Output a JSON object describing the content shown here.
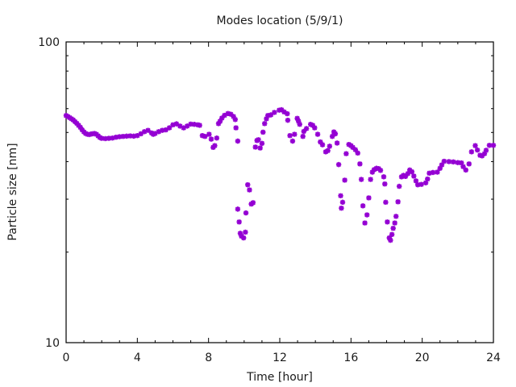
{
  "chart_data": {
    "type": "scatter",
    "title": "Modes location (5/9/1)",
    "xlabel": "Time [hour]",
    "ylabel": "Particle size [nm]",
    "xlim": [
      0,
      24
    ],
    "ylim": [
      10,
      100
    ],
    "yscale": "log",
    "xticks": [
      "0",
      "4",
      "8",
      "12",
      "16",
      "20",
      "24"
    ],
    "yticks": [
      "10",
      "100"
    ],
    "grid": false,
    "legend": "none",
    "series": [
      {
        "name": "modes",
        "color": "#9400d3",
        "marker": "asterisk",
        "points": [
          [
            0,
            56.9
          ],
          [
            0.1,
            56.5
          ],
          [
            0.2,
            56
          ],
          [
            0.3,
            55.5
          ],
          [
            0.4,
            55
          ],
          [
            0.5,
            54.3
          ],
          [
            0.6,
            53.6
          ],
          [
            0.7,
            52.8
          ],
          [
            0.8,
            52
          ],
          [
            0.9,
            51
          ],
          [
            1.0,
            50.2
          ],
          [
            1.1,
            49.6
          ],
          [
            1.2,
            49.3
          ],
          [
            1.3,
            49.2
          ],
          [
            1.4,
            49.4
          ],
          [
            1.5,
            49.5
          ],
          [
            1.6,
            49.6
          ],
          [
            1.7,
            49.3
          ],
          [
            1.8,
            48.7
          ],
          [
            1.9,
            48.1
          ],
          [
            2.0,
            47.8
          ],
          [
            2.2,
            47.7
          ],
          [
            2.4,
            47.8
          ],
          [
            2.6,
            47.9
          ],
          [
            2.8,
            48.2
          ],
          [
            3.0,
            48.4
          ],
          [
            3.2,
            48.5
          ],
          [
            3.4,
            48.6
          ],
          [
            3.6,
            48.7
          ],
          [
            3.8,
            48.6
          ],
          [
            4.0,
            48.8
          ],
          [
            4.2,
            49.5
          ],
          [
            4.4,
            50.3
          ],
          [
            4.6,
            50.8
          ],
          [
            4.8,
            49.8
          ],
          [
            4.9,
            49.3
          ],
          [
            5.0,
            49.6
          ],
          [
            5.2,
            50.3
          ],
          [
            5.4,
            50.8
          ],
          [
            5.6,
            51
          ],
          [
            5.8,
            51.8
          ],
          [
            6.0,
            53
          ],
          [
            6.2,
            53.4
          ],
          [
            6.4,
            52.5
          ],
          [
            6.6,
            51.8
          ],
          [
            6.8,
            52.5
          ],
          [
            7.0,
            53.3
          ],
          [
            7.2,
            53.2
          ],
          [
            7.4,
            53
          ],
          [
            7.5,
            52.8
          ],
          [
            7.65,
            48.8
          ],
          [
            7.8,
            48.5
          ],
          [
            8.03,
            49.3
          ],
          [
            8.15,
            47.5
          ],
          [
            8.26,
            44.6
          ],
          [
            8.35,
            45.2
          ],
          [
            8.46,
            47.9
          ],
          [
            8.56,
            53.5
          ],
          [
            8.65,
            54.5
          ],
          [
            8.75,
            55.8
          ],
          [
            8.9,
            57
          ],
          [
            9.09,
            57.8
          ],
          [
            9.25,
            57.5
          ],
          [
            9.4,
            56.5
          ],
          [
            9.5,
            55.2
          ],
          [
            9.54,
            51.8
          ],
          [
            9.64,
            46.8
          ],
          [
            9.64,
            27.8
          ],
          [
            9.72,
            25.2
          ],
          [
            9.78,
            23.1
          ],
          [
            9.85,
            22.6
          ],
          [
            9.97,
            22.3
          ],
          [
            10.07,
            23.3
          ],
          [
            10.1,
            27.0
          ],
          [
            10.2,
            33.5
          ],
          [
            10.3,
            32.2
          ],
          [
            10.4,
            28.9
          ],
          [
            10.5,
            29.2
          ],
          [
            10.63,
            44.7
          ],
          [
            10.72,
            47.0
          ],
          [
            10.8,
            47.3
          ],
          [
            10.9,
            44.4
          ],
          [
            11.0,
            46.0
          ],
          [
            11.06,
            50.1
          ],
          [
            11.15,
            53.5
          ],
          [
            11.25,
            55.5
          ],
          [
            11.33,
            56.9
          ],
          [
            11.5,
            57.2
          ],
          [
            11.7,
            58.3
          ],
          [
            11.97,
            59.3
          ],
          [
            12.1,
            59.5
          ],
          [
            12.25,
            58.5
          ],
          [
            12.42,
            57.7
          ],
          [
            12.45,
            54.9
          ],
          [
            12.57,
            48.8
          ],
          [
            12.72,
            46.8
          ],
          [
            12.83,
            49.3
          ],
          [
            12.98,
            55.7
          ],
          [
            13.05,
            54.5
          ],
          [
            13.12,
            53.2
          ],
          [
            13.3,
            48.5
          ],
          [
            13.35,
            50.4
          ],
          [
            13.5,
            51.5
          ],
          [
            13.73,
            53.2
          ],
          [
            13.85,
            52.8
          ],
          [
            13.96,
            51.8
          ],
          [
            14.13,
            49.3
          ],
          [
            14.28,
            46.5
          ],
          [
            14.4,
            45.5
          ],
          [
            14.58,
            43.1
          ],
          [
            14.7,
            43.5
          ],
          [
            14.8,
            45.0
          ],
          [
            14.95,
            48.5
          ],
          [
            15.04,
            50.2
          ],
          [
            15.12,
            49.5
          ],
          [
            15.22,
            46.1
          ],
          [
            15.31,
            39.1
          ],
          [
            15.42,
            30.8
          ],
          [
            15.46,
            28.0
          ],
          [
            15.53,
            29.3
          ],
          [
            15.65,
            34.7
          ],
          [
            15.73,
            42.5
          ],
          [
            15.88,
            45.6
          ],
          [
            16.0,
            45.2
          ],
          [
            16.1,
            44.6
          ],
          [
            16.25,
            43.8
          ],
          [
            16.38,
            42.7
          ],
          [
            16.5,
            39.3
          ],
          [
            16.58,
            34.9
          ],
          [
            16.67,
            28.5
          ],
          [
            16.78,
            25.0
          ],
          [
            16.9,
            26.6
          ],
          [
            17.0,
            30.3
          ],
          [
            17.1,
            34.9
          ],
          [
            17.2,
            36.9
          ],
          [
            17.3,
            37.6
          ],
          [
            17.43,
            38.0
          ],
          [
            17.55,
            37.9
          ],
          [
            17.66,
            37.4
          ],
          [
            17.84,
            35.6
          ],
          [
            17.9,
            33.7
          ],
          [
            17.95,
            29.3
          ],
          [
            18.04,
            25.2
          ],
          [
            18.15,
            22.3
          ],
          [
            18.22,
            21.9
          ],
          [
            18.3,
            22.9
          ],
          [
            18.37,
            24.0
          ],
          [
            18.46,
            25.0
          ],
          [
            18.53,
            26.3
          ],
          [
            18.64,
            29.4
          ],
          [
            18.71,
            33.1
          ],
          [
            18.84,
            35.6
          ],
          [
            18.95,
            36.0
          ],
          [
            19.06,
            35.7
          ],
          [
            19.2,
            36.5
          ],
          [
            19.3,
            37.5
          ],
          [
            19.42,
            37
          ],
          [
            19.53,
            35.8
          ],
          [
            19.65,
            34.5
          ],
          [
            19.75,
            33.5
          ],
          [
            19.95,
            33.6
          ],
          [
            20.2,
            34.0
          ],
          [
            20.3,
            35.0
          ],
          [
            20.4,
            36.6
          ],
          [
            20.6,
            36.8
          ],
          [
            20.85,
            36.9
          ],
          [
            21.0,
            38.0
          ],
          [
            21.1,
            39.0
          ],
          [
            21.23,
            40.1
          ],
          [
            21.5,
            40.0
          ],
          [
            21.75,
            39.9
          ],
          [
            22.0,
            39.7
          ],
          [
            22.2,
            39.6
          ],
          [
            22.3,
            38.5
          ],
          [
            22.45,
            37.5
          ],
          [
            22.63,
            39.3
          ],
          [
            22.77,
            43.1
          ],
          [
            22.98,
            45.2
          ],
          [
            23.1,
            43.7
          ],
          [
            23.25,
            42.0
          ],
          [
            23.36,
            41.8
          ],
          [
            23.5,
            42.5
          ],
          [
            23.59,
            43.6
          ],
          [
            23.77,
            45.3
          ],
          [
            24.0,
            45.3
          ]
        ]
      }
    ]
  }
}
